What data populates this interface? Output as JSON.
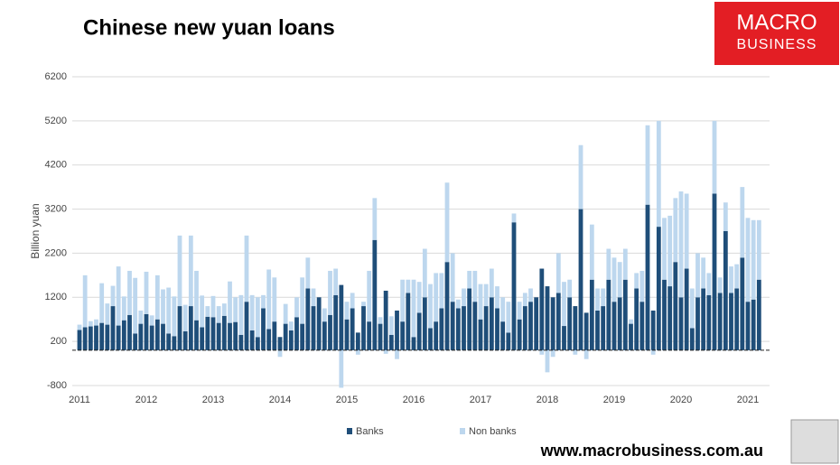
{
  "chart_data": {
    "type": "stacked-bar",
    "title": "Chinese new yuan loans",
    "y_label": "Billion yuan",
    "categories": [
      "2011",
      null,
      null,
      null,
      null,
      null,
      null,
      null,
      null,
      null,
      null,
      null,
      "2012",
      null,
      null,
      null,
      null,
      null,
      null,
      null,
      null,
      null,
      null,
      null,
      "2013",
      null,
      null,
      null,
      null,
      null,
      null,
      null,
      null,
      null,
      null,
      null,
      "2014",
      null,
      null,
      null,
      null,
      null,
      null,
      null,
      null,
      null,
      null,
      null,
      "2015",
      null,
      null,
      null,
      null,
      null,
      null,
      null,
      null,
      null,
      null,
      null,
      "2016",
      null,
      null,
      null,
      null,
      null,
      null,
      null,
      null,
      null,
      null,
      null,
      "2017",
      null,
      null,
      null,
      null,
      null,
      null,
      null,
      null,
      null,
      null,
      null,
      "2018",
      null,
      null,
      null,
      null,
      null,
      null,
      null,
      null,
      null,
      null,
      null,
      "2019",
      null,
      null,
      null,
      null,
      null,
      null,
      null,
      null,
      null,
      null,
      null,
      "2020",
      null,
      null,
      null,
      null,
      null,
      null,
      null,
      null,
      null,
      null,
      null,
      "2021",
      null,
      null
    ],
    "series": [
      {
        "name": "Banks",
        "color": "#1f4e79",
        "values": [
          460,
          520,
          540,
          560,
          620,
          580,
          1000,
          560,
          680,
          800,
          380,
          600,
          820,
          560,
          700,
          600,
          380,
          320,
          1000,
          430,
          1000,
          680,
          520,
          760,
          750,
          620,
          780,
          620,
          640,
          350,
          1100,
          450,
          300,
          950,
          480,
          650,
          300,
          600,
          450,
          750,
          600,
          1400,
          1000,
          1200,
          650,
          800,
          1250,
          1480,
          700,
          950,
          400,
          1000,
          650,
          2500,
          600,
          1350,
          350,
          900,
          650,
          1300,
          300,
          850,
          1200,
          500,
          650,
          950,
          2000,
          1100,
          950,
          1000,
          1400,
          1100,
          700,
          1000,
          1200,
          950,
          650,
          400,
          2900,
          700,
          1000,
          1100,
          1200,
          1850,
          1450,
          1200,
          1300,
          550,
          1200,
          1000,
          3200,
          850,
          1600,
          900,
          1000,
          1600,
          1100,
          1200,
          1600,
          600,
          1400,
          1100,
          3300,
          900,
          2800,
          1600,
          1450,
          2000,
          1200,
          1850,
          500,
          1200,
          1400,
          1250,
          3550,
          1300,
          2700,
          1300,
          1400,
          2100,
          1100,
          1150,
          1600
        ]
      },
      {
        "name": "Non banks",
        "color": "#bdd7ee",
        "values": [
          120,
          1180,
          120,
          140,
          900,
          480,
          460,
          1340,
          540,
          1000,
          1260,
          300,
          960,
          230,
          1000,
          780,
          1040,
          900,
          1600,
          600,
          1600,
          1120,
          720,
          240,
          480,
          380,
          280,
          940,
          560,
          900,
          1500,
          800,
          900,
          300,
          1350,
          1000,
          -150,
          450,
          200,
          450,
          1050,
          700,
          400,
          0,
          300,
          1000,
          600,
          -850,
          400,
          350,
          -100,
          100,
          1150,
          950,
          150,
          -80,
          420,
          -200,
          950,
          300,
          1300,
          700,
          1100,
          1000,
          1100,
          800,
          1800,
          1100,
          200,
          400,
          400,
          700,
          800,
          500,
          650,
          500,
          550,
          700,
          200,
          400,
          300,
          300,
          0,
          -100,
          -500,
          -150,
          900,
          1000,
          400,
          -100,
          1450,
          -200,
          1250,
          500,
          400,
          700,
          1000,
          800,
          700,
          100,
          350,
          700,
          1800,
          -100,
          2400,
          1400,
          1600,
          1450,
          2400,
          1700,
          900,
          1000,
          700,
          500,
          1650,
          350,
          650,
          600,
          550,
          1600,
          1900,
          1800,
          1350
        ]
      }
    ],
    "ylim": [
      -800,
      6200
    ],
    "yticks": [
      -800,
      200,
      1200,
      2200,
      3200,
      4200,
      5200,
      6200
    ],
    "grid": true
  },
  "logo": {
    "line1": "MACRO",
    "line2": "BUSINESS"
  },
  "url": "www.macrobusiness.com.au"
}
